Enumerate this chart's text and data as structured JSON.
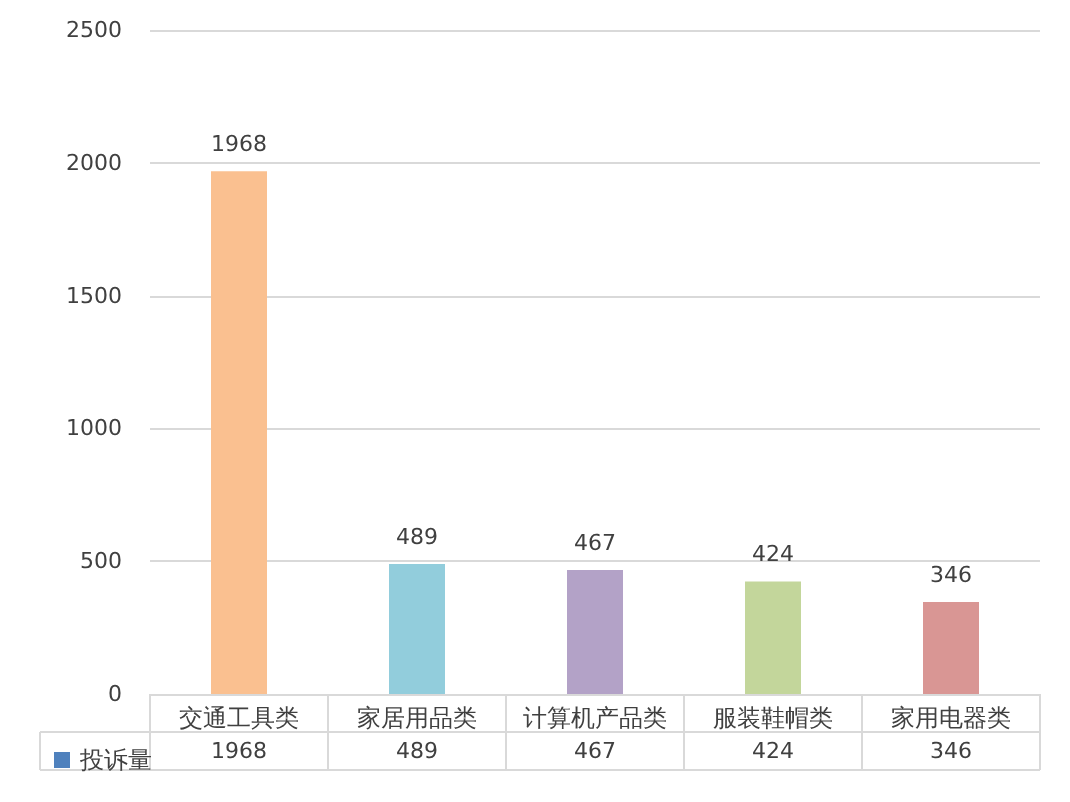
{
  "chart_data": {
    "type": "bar",
    "categories": [
      "交通工具类",
      "家居用品类",
      "计算机产品类",
      "服装鞋帽类",
      "家用电器类"
    ],
    "series": [
      {
        "name": "投诉量",
        "color": "#4f81bd",
        "colors": [
          "#fac090",
          "#92cddc",
          "#b3a2c7",
          "#c3d69b",
          "#d99694"
        ],
        "values": [
          1968,
          489,
          467,
          424,
          346
        ]
      }
    ],
    "annotations": [
      "1968",
      "489",
      "467",
      "424",
      "346"
    ],
    "ylim": [
      0,
      2500
    ],
    "yticks": [
      0,
      500,
      1000,
      1500,
      2000,
      2500
    ],
    "grid": "y",
    "legend": "bottom left",
    "data_labels": true
  }
}
